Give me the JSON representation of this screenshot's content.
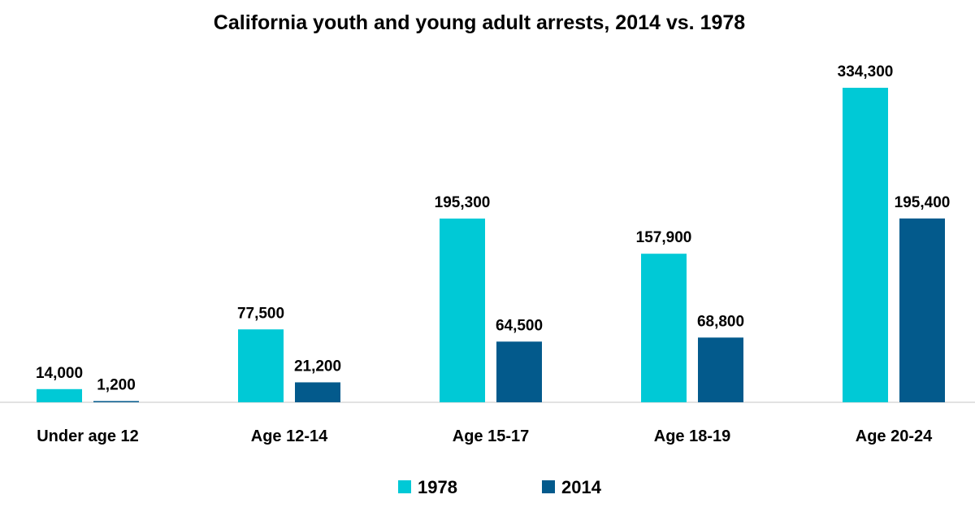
{
  "chart_data": {
    "type": "bar",
    "title": "California youth and young adult arrests, 2014 vs. 1978",
    "categories": [
      "Under age 12",
      "Age 12-14",
      "Age 15-17",
      "Age 18-19",
      "Age 20-24"
    ],
    "series": [
      {
        "name": "1978",
        "color": "#00C9D6",
        "values": [
          14000,
          77500,
          195300,
          157900,
          334300
        ],
        "labels": [
          "14,000",
          "77,500",
          "195,300",
          "157,900",
          "334,300"
        ]
      },
      {
        "name": "2014",
        "color": "#035A8C",
        "values": [
          1200,
          21200,
          64500,
          68800,
          195400
        ],
        "labels": [
          "1,200",
          "21,200",
          "64,500",
          "68,800",
          "195,400"
        ]
      }
    ],
    "ylim": [
      0,
      334300
    ],
    "grid": false,
    "legend": "bottom-center",
    "xlabel": "",
    "ylabel": ""
  }
}
